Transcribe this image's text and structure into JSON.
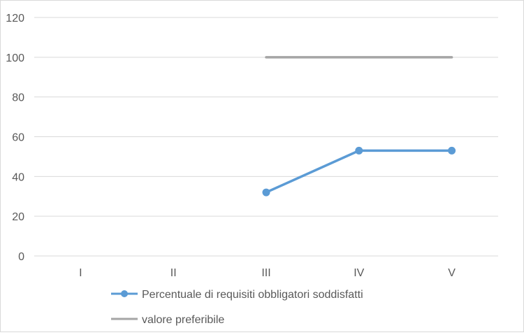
{
  "chart_data": {
    "type": "line",
    "title": "",
    "xlabel": "",
    "ylabel": "",
    "categories": [
      "I",
      "II",
      "III",
      "IV",
      "V"
    ],
    "ylim": [
      0,
      120
    ],
    "yticks": [
      0,
      20,
      40,
      60,
      80,
      100,
      120
    ],
    "grid": "horizontal",
    "legend_position": "bottom-left",
    "series": [
      {
        "name": "Percentuale di requisiti obbligatori soddisfatti",
        "values": [
          null,
          null,
          32,
          53,
          53
        ],
        "color": "#5b9bd5",
        "markers": true
      },
      {
        "name": "valore preferibile",
        "values": [
          null,
          null,
          100,
          100,
          100
        ],
        "color": "#a5a5a5",
        "markers": false
      }
    ]
  }
}
